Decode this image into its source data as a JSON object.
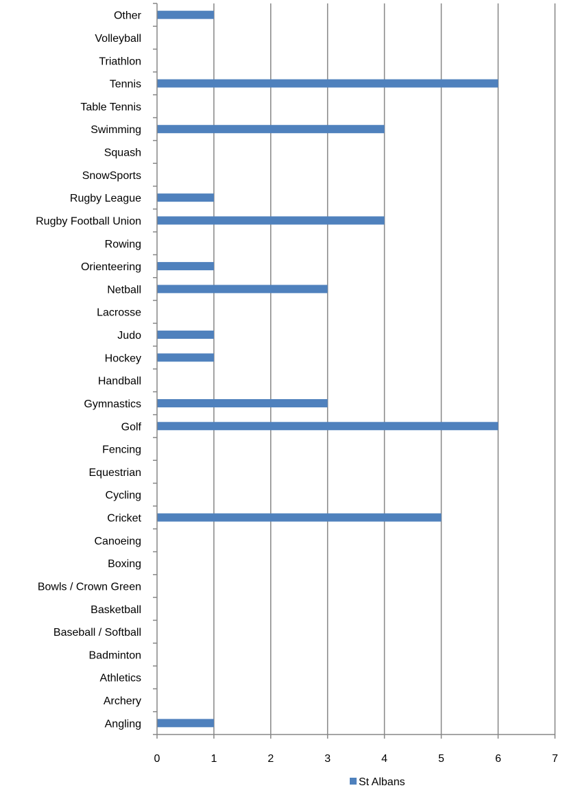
{
  "chart_data": {
    "type": "bar",
    "orientation": "horizontal",
    "categories": [
      "Other",
      "Volleyball",
      "Triathlon",
      "Tennis",
      "Table Tennis",
      "Swimming",
      "Squash",
      "SnowSports",
      "Rugby League",
      "Rugby Football Union",
      "Rowing",
      "Orienteering",
      "Netball",
      "Lacrosse",
      "Judo",
      "Hockey",
      "Handball",
      "Gymnastics",
      "Golf",
      "Fencing",
      "Equestrian",
      "Cycling",
      "Cricket",
      "Canoeing",
      "Boxing",
      "Bowls / Crown Green",
      "Basketball",
      "Baseball / Softball",
      "Badminton",
      "Athletics",
      "Archery",
      "Angling"
    ],
    "series": [
      {
        "name": "St Albans",
        "values": [
          1,
          0,
          0,
          6,
          0,
          4,
          0,
          0,
          1,
          4,
          0,
          1,
          3,
          0,
          1,
          1,
          0,
          3,
          6,
          0,
          0,
          0,
          5,
          0,
          0,
          0,
          0,
          0,
          0,
          0,
          0,
          1
        ]
      }
    ],
    "xlim": [
      0,
      7
    ],
    "x_ticks": [
      "0",
      "1",
      "2",
      "3",
      "4",
      "5",
      "6",
      "7"
    ],
    "grid": "vertical",
    "legend": "bottom",
    "bar_color": "#4F81BD",
    "title": "",
    "xlabel": "",
    "ylabel": ""
  }
}
